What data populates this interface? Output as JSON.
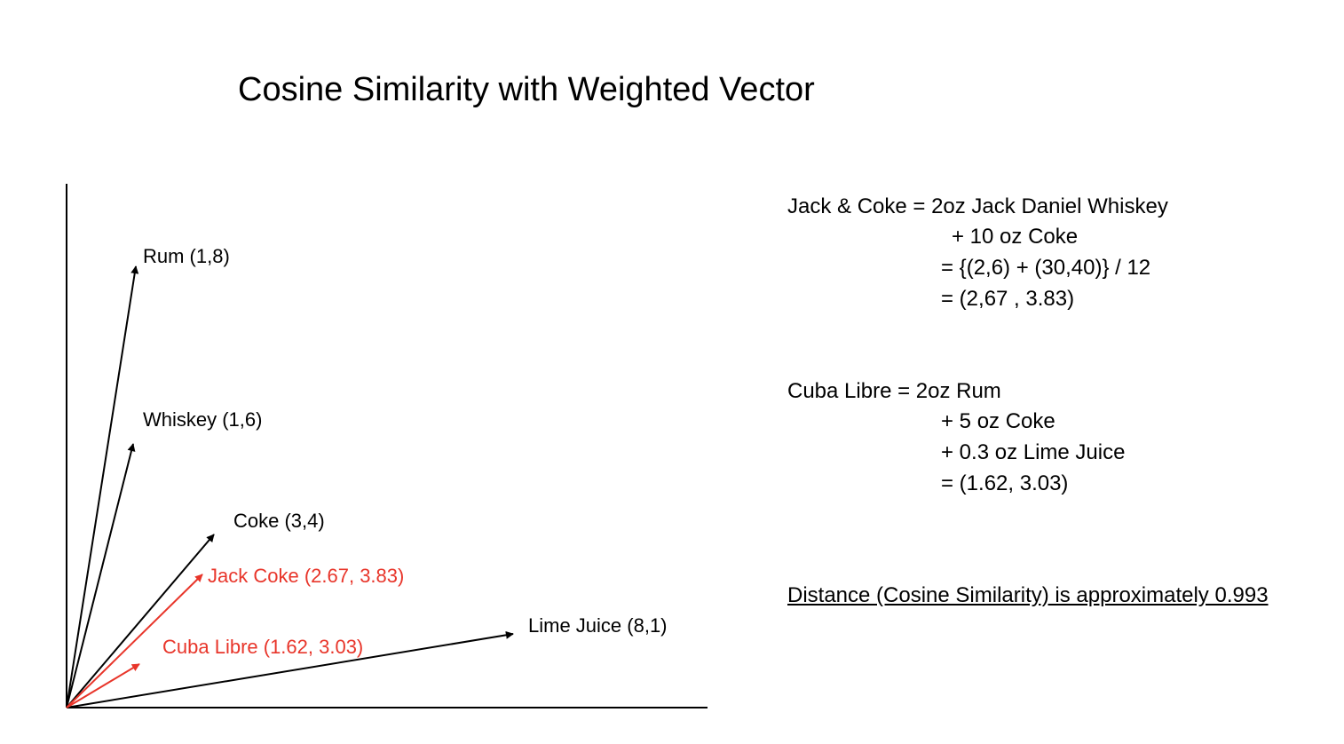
{
  "title": "Cosine Similarity with Weighted Vector",
  "colors": {
    "base_vector": "#000000",
    "weighted_vector": "#e8352a"
  },
  "vectors": [
    {
      "id": "rum",
      "label": "Rum (1,8)",
      "x": 1,
      "y": 8,
      "weighted": false
    },
    {
      "id": "whiskey",
      "label": "Whiskey (1,6)",
      "x": 1,
      "y": 6,
      "weighted": false
    },
    {
      "id": "coke",
      "label": "Coke (3,4)",
      "x": 3,
      "y": 4,
      "weighted": false
    },
    {
      "id": "jack-coke",
      "label": "Jack Coke (2.67, 3.83)",
      "x": 2.67,
      "y": 3.83,
      "weighted": true
    },
    {
      "id": "lime-juice",
      "label": "Lime Juice (8,1)",
      "x": 8,
      "y": 1,
      "weighted": false
    },
    {
      "id": "cuba-libre",
      "label": "Cuba Libre (1.62, 3.03)",
      "x": 1.62,
      "y": 3.03,
      "weighted": true
    }
  ],
  "jack_coke_formula": [
    "Jack & Coke = 2oz Jack Daniel Whiskey",
    "+ 10 oz Coke",
    "= {(2,6) + (30,40)} / 12",
    "= (2,67 , 3.83)"
  ],
  "cuba_libre_formula": [
    "Cuba Libre = 2oz Rum",
    "+ 5 oz Coke",
    "+ 0.3 oz Lime Juice",
    "= (1.62, 3.03)"
  ],
  "distance_note": "Distance (Cosine Similarity) is approximately 0.993"
}
